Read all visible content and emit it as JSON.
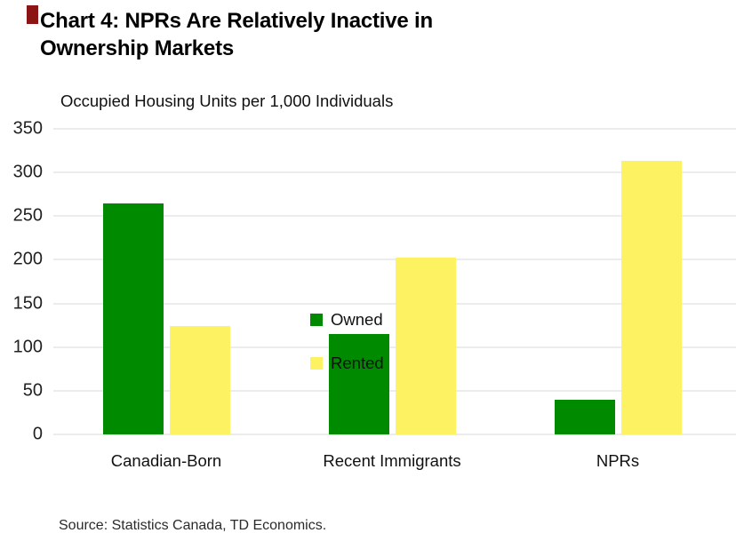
{
  "page": {
    "background": "#FFFFFF",
    "accent_mark_color": "#8B1414"
  },
  "header": {
    "title": "Chart 4: NPRs Are Relatively Inactive in Ownership Markets"
  },
  "chart_data": {
    "type": "bar",
    "title": "Chart 4: NPRs Are Relatively Inactive in Ownership Markets",
    "subtitle": "Occupied Housing Units per 1,000 Individuals",
    "ylabel": "Occupied Housing Units per 1,000 Individuals",
    "xlabel": "",
    "categories": [
      "Canadian-Born",
      "Recent Immigrants",
      "NPRs"
    ],
    "series": [
      {
        "name": "Owned",
        "color": "#008A00",
        "values": [
          265,
          115,
          40
        ]
      },
      {
        "name": "Rented",
        "color": "#FCF262",
        "values": [
          124,
          202,
          313
        ]
      }
    ],
    "ylim": [
      0,
      350
    ],
    "yticks": [
      0,
      50,
      100,
      150,
      200,
      250,
      300,
      350
    ],
    "grid": "horizontal",
    "gridline_color": "#D9D9D9",
    "legend_position": "inside-upper-center"
  },
  "footer": {
    "source": "Source: Statistics Canada, TD Economics."
  }
}
